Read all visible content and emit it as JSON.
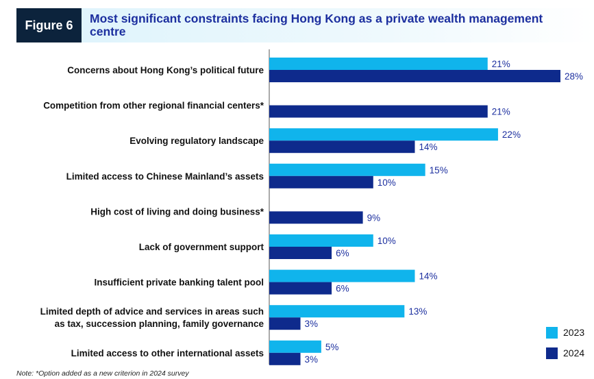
{
  "figure": {
    "label": "Figure 6",
    "title": "Most significant constraints facing Hong Kong as a private wealth management centre"
  },
  "note": "Note: *Option added as a new criterion in 2024 survey",
  "colors": {
    "2023": "#10b4ec",
    "2024": "#0e2a8c",
    "title": "#1c2f9f",
    "tag_bg": "#0c233c"
  },
  "chart_data": {
    "type": "bar",
    "orientation": "horizontal",
    "title": "Most significant constraints facing Hong Kong as a private wealth management centre",
    "xlabel": "",
    "ylabel": "",
    "unit": "%",
    "xlim": [
      0,
      28
    ],
    "grid": false,
    "legend_position": "bottom-right",
    "categories": [
      [
        "Concerns about Hong Kong’s political future"
      ],
      [
        "Competition from other regional financial centers*"
      ],
      [
        "Evolving regulatory landscape"
      ],
      [
        "Limited access to Chinese Mainland’s assets"
      ],
      [
        "High cost of living and doing business*"
      ],
      [
        "Lack of government support"
      ],
      [
        "Insufficient private banking talent pool"
      ],
      [
        "Limited depth of advice and services in areas such",
        "as tax, succession planning, family governance"
      ],
      [
        "Limited access to other international assets"
      ]
    ],
    "series": [
      {
        "name": "2023",
        "color": "#10b4ec",
        "values": [
          21,
          null,
          22,
          15,
          null,
          10,
          14,
          13,
          5
        ]
      },
      {
        "name": "2024",
        "color": "#0e2a8c",
        "values": [
          28,
          21,
          14,
          10,
          9,
          6,
          6,
          3,
          3
        ]
      }
    ]
  }
}
